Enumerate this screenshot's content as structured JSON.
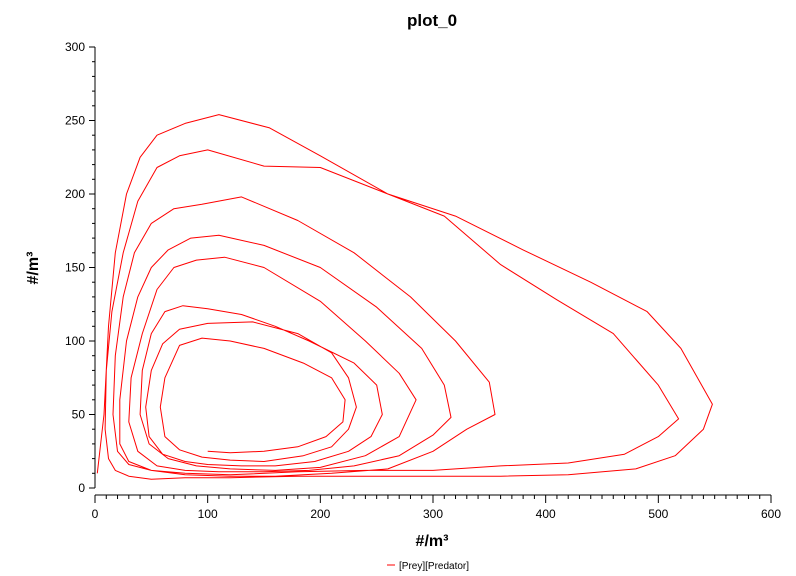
{
  "chart_data": {
    "type": "line",
    "title": "plot_0",
    "xlabel": "#/m³",
    "ylabel": "#/m³",
    "xlim": [
      0,
      600
    ],
    "ylim": [
      0,
      300
    ],
    "xticks": [
      0,
      100,
      200,
      300,
      400,
      500,
      600
    ],
    "yticks": [
      0,
      50,
      100,
      150,
      200,
      250,
      300
    ],
    "grid": false,
    "legend_position": "bottom-center",
    "series": [
      {
        "name": "[Prey][Predator]",
        "color": "#ff0000",
        "points": [
          [
            2,
            10
          ],
          [
            8,
            50
          ],
          [
            12,
            110
          ],
          [
            18,
            160
          ],
          [
            28,
            200
          ],
          [
            40,
            225
          ],
          [
            55,
            240
          ],
          [
            80,
            248
          ],
          [
            110,
            254
          ],
          [
            155,
            245
          ],
          [
            200,
            226
          ],
          [
            260,
            200
          ],
          [
            320,
            185
          ],
          [
            380,
            162
          ],
          [
            440,
            140
          ],
          [
            490,
            120
          ],
          [
            520,
            95
          ],
          [
            548,
            57
          ],
          [
            540,
            40
          ],
          [
            515,
            22
          ],
          [
            480,
            13
          ],
          [
            420,
            9
          ],
          [
            360,
            8
          ],
          [
            300,
            8
          ],
          [
            240,
            8
          ],
          [
            180,
            8
          ],
          [
            120,
            7
          ],
          [
            80,
            7
          ],
          [
            50,
            6
          ],
          [
            30,
            8
          ],
          [
            18,
            12
          ],
          [
            12,
            20
          ],
          [
            9,
            40
          ],
          [
            10,
            80
          ],
          [
            15,
            120
          ],
          [
            25,
            160
          ],
          [
            38,
            195
          ],
          [
            55,
            218
          ],
          [
            75,
            226
          ],
          [
            100,
            230
          ],
          [
            150,
            219
          ],
          [
            200,
            218
          ],
          [
            260,
            200
          ],
          [
            310,
            185
          ],
          [
            360,
            152
          ],
          [
            410,
            128
          ],
          [
            460,
            105
          ],
          [
            500,
            70
          ],
          [
            518,
            47
          ],
          [
            500,
            35
          ],
          [
            470,
            23
          ],
          [
            420,
            17
          ],
          [
            360,
            15
          ],
          [
            300,
            12
          ],
          [
            240,
            12
          ],
          [
            180,
            11
          ],
          [
            120,
            9
          ],
          [
            80,
            10
          ],
          [
            50,
            12
          ],
          [
            30,
            16
          ],
          [
            20,
            25
          ],
          [
            16,
            50
          ],
          [
            18,
            90
          ],
          [
            25,
            130
          ],
          [
            35,
            160
          ],
          [
            50,
            180
          ],
          [
            70,
            190
          ],
          [
            95,
            193
          ],
          [
            130,
            198
          ],
          [
            180,
            182
          ],
          [
            230,
            160
          ],
          [
            280,
            130
          ],
          [
            320,
            100
          ],
          [
            350,
            72
          ],
          [
            355,
            50
          ],
          [
            330,
            40
          ],
          [
            300,
            25
          ],
          [
            260,
            13
          ],
          [
            210,
            10
          ],
          [
            160,
            8
          ],
          [
            120,
            8
          ],
          [
            80,
            9
          ],
          [
            50,
            12
          ],
          [
            30,
            18
          ],
          [
            22,
            30
          ],
          [
            22,
            60
          ],
          [
            28,
            100
          ],
          [
            38,
            130
          ],
          [
            50,
            150
          ],
          [
            65,
            162
          ],
          [
            85,
            170
          ],
          [
            110,
            172
          ],
          [
            150,
            165
          ],
          [
            200,
            150
          ],
          [
            250,
            123
          ],
          [
            290,
            95
          ],
          [
            310,
            70
          ],
          [
            316,
            48
          ],
          [
            300,
            36
          ],
          [
            270,
            22
          ],
          [
            230,
            15
          ],
          [
            190,
            12
          ],
          [
            150,
            11
          ],
          [
            110,
            11
          ],
          [
            80,
            12
          ],
          [
            55,
            15
          ],
          [
            38,
            25
          ],
          [
            30,
            45
          ],
          [
            32,
            75
          ],
          [
            42,
            105
          ],
          [
            55,
            135
          ],
          [
            70,
            150
          ],
          [
            90,
            155
          ],
          [
            115,
            157
          ],
          [
            150,
            150
          ],
          [
            200,
            127
          ],
          [
            240,
            100
          ],
          [
            270,
            78
          ],
          [
            285,
            60
          ],
          [
            270,
            35
          ],
          [
            240,
            22
          ],
          [
            200,
            14
          ],
          [
            160,
            12
          ],
          [
            120,
            13
          ],
          [
            90,
            15
          ],
          [
            65,
            20
          ],
          [
            48,
            30
          ],
          [
            40,
            50
          ],
          [
            42,
            80
          ],
          [
            50,
            105
          ],
          [
            62,
            120
          ],
          [
            78,
            124
          ],
          [
            100,
            122
          ],
          [
            130,
            118
          ],
          [
            160,
            110
          ],
          [
            190,
            100
          ],
          [
            230,
            85
          ],
          [
            250,
            70
          ],
          [
            255,
            50
          ],
          [
            245,
            35
          ],
          [
            225,
            25
          ],
          [
            195,
            18
          ],
          [
            160,
            15
          ],
          [
            130,
            15
          ],
          [
            100,
            16
          ],
          [
            80,
            18
          ],
          [
            60,
            23
          ],
          [
            48,
            35
          ],
          [
            45,
            55
          ],
          [
            50,
            80
          ],
          [
            60,
            98
          ],
          [
            75,
            108
          ],
          [
            100,
            112
          ],
          [
            140,
            113
          ],
          [
            180,
            105
          ],
          [
            210,
            92
          ],
          [
            225,
            75
          ],
          [
            232,
            55
          ],
          [
            225,
            40
          ],
          [
            210,
            28
          ],
          [
            185,
            22
          ],
          [
            150,
            18
          ],
          [
            120,
            19
          ],
          [
            95,
            21
          ],
          [
            75,
            26
          ],
          [
            62,
            35
          ],
          [
            58,
            55
          ],
          [
            62,
            75
          ],
          [
            75,
            97
          ],
          [
            95,
            102
          ],
          [
            120,
            100
          ],
          [
            150,
            95
          ],
          [
            185,
            85
          ],
          [
            210,
            75
          ],
          [
            222,
            60
          ],
          [
            220,
            45
          ],
          [
            205,
            35
          ],
          [
            180,
            28
          ],
          [
            150,
            25
          ],
          [
            120,
            24
          ],
          [
            100,
            25
          ]
        ]
      }
    ]
  }
}
